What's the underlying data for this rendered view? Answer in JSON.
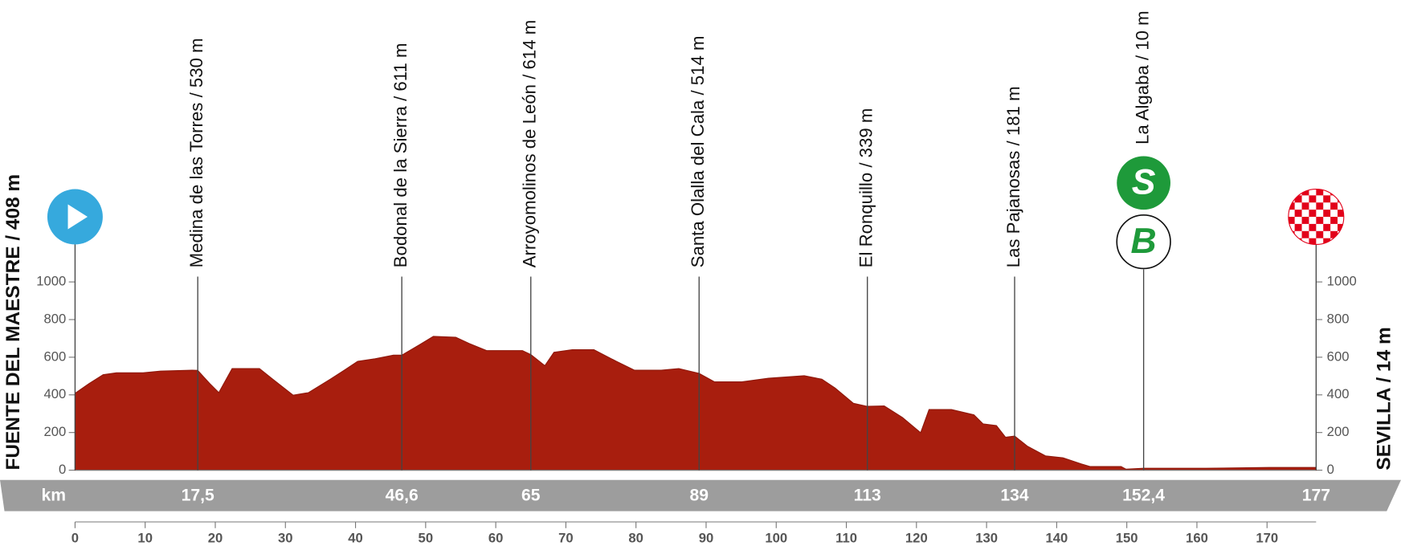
{
  "chart_data": {
    "type": "area",
    "color": "#a81e0e",
    "xlim": [
      0,
      177
    ],
    "ylim": [
      0,
      1000
    ],
    "xticks": [
      0,
      10,
      20,
      30,
      40,
      50,
      60,
      70,
      80,
      90,
      100,
      110,
      120,
      130,
      140,
      150,
      160,
      170
    ],
    "yticks": [
      0,
      200,
      400,
      600,
      800,
      1000
    ],
    "x_unit": "km",
    "x": [
      0,
      2,
      4,
      5.9,
      9.7,
      12.2,
      16.7,
      17.5,
      19.2,
      20.5,
      22.4,
      26.3,
      28.2,
      31.1,
      33.3,
      36.4,
      38.4,
      40.3,
      42.8,
      45.4,
      46.6,
      49.2,
      51.1,
      54.3,
      56.2,
      58.7,
      63.8,
      65,
      67,
      68.3,
      70.9,
      74,
      77.2,
      79.8,
      83.6,
      86.1,
      89,
      91.2,
      95.1,
      98.9,
      104,
      106.5,
      108.4,
      111,
      113,
      115.4,
      118,
      120.6,
      121.8,
      125,
      128.2,
      129.5,
      131.4,
      132.7,
      134,
      135.8,
      138.4,
      140.9,
      143.5,
      144.8,
      149.2,
      149.9,
      152.4,
      161.3,
      170.3,
      177
    ],
    "values": [
      408,
      460,
      507,
      517,
      517,
      526,
      531,
      530,
      460,
      412,
      540,
      540,
      483,
      398,
      412,
      483,
      531,
      578,
      592,
      611,
      611,
      668,
      711,
      706,
      673,
      635,
      635,
      614,
      555,
      626,
      640,
      640,
      578,
      531,
      531,
      540,
      514,
      469,
      469,
      488,
      502,
      483,
      436,
      355,
      339,
      341,
      280,
      199,
      322,
      322,
      294,
      246,
      237,
      175,
      181,
      128,
      76,
      66,
      33,
      19,
      19,
      5,
      10,
      10,
      14,
      14
    ],
    "start": {
      "label": "FUENTE DEL MAESTRE / 408 m",
      "km": 0
    },
    "finish": {
      "label": "SEVILLA / 14 m",
      "km": 177
    },
    "waypoints": [
      {
        "label": "Medina de las Torres / 530 m",
        "km": {
          "value": 17.5,
          "label": "17,5"
        }
      },
      {
        "label": "Bodonal de la Sierra / 611 m",
        "km": {
          "value": 46.6,
          "label": "46,6"
        }
      },
      {
        "label": "Arroyomolinos de León / 614 m",
        "km": 65
      },
      {
        "label": "Santa Olalla del Cala / 514 m",
        "km": 89
      },
      {
        "label": "El Ronquillo / 339 m",
        "km": 113
      },
      {
        "label": "Las Pajanosas / 181 m",
        "km": 134
      },
      {
        "label": "La Algaba / 10 m",
        "km": {
          "value": 152.4,
          "label": "152,4"
        },
        "badges": [
          "S",
          "B"
        ]
      }
    ]
  }
}
